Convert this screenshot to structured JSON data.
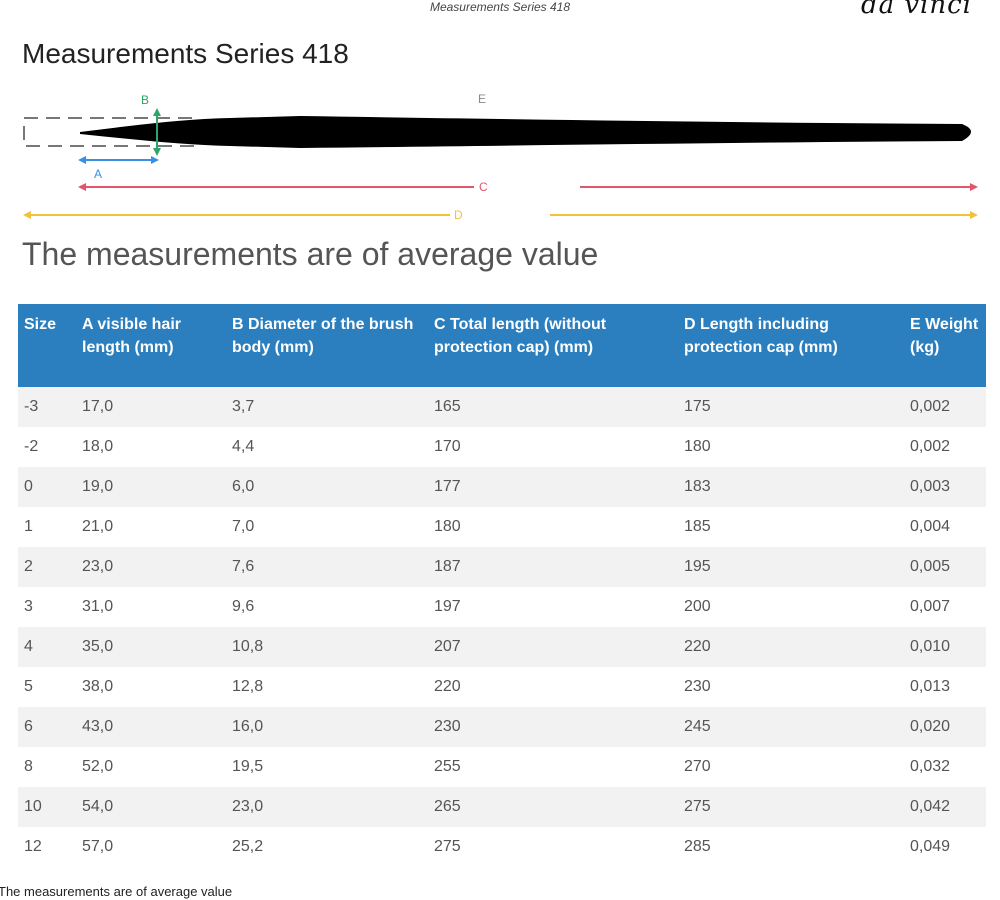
{
  "header": {
    "doc_title": "Measurements Series 418",
    "brand": "da vinci"
  },
  "page_title": "Measurements Series 418",
  "diagram": {
    "labels": {
      "a": "A",
      "b": "B",
      "c": "C",
      "d": "D",
      "e": "E"
    },
    "colors": {
      "a": "#3a8ee6",
      "b": "#2ea46b",
      "c": "#e0566b",
      "d": "#f2c23a",
      "brush": "#000000",
      "cap": "#777777"
    }
  },
  "subtitle": "The measurements are of average value",
  "table": {
    "header_color": "#2c7fbf",
    "columns": [
      "Size",
      "A visible hair length (mm)",
      "B Diameter of the brush body (mm)",
      "C Total length (without protection cap) (mm)",
      "D Length including protection cap (mm)",
      "E Weight (kg)"
    ],
    "rows": [
      [
        "-3",
        "17,0",
        "3,7",
        "165",
        "175",
        "0,002"
      ],
      [
        "-2",
        "18,0",
        "4,4",
        "170",
        "180",
        "0,002"
      ],
      [
        "0",
        "19,0",
        "6,0",
        "177",
        "183",
        "0,003"
      ],
      [
        "1",
        "21,0",
        "7,0",
        "180",
        "185",
        "0,004"
      ],
      [
        "2",
        "23,0",
        "7,6",
        "187",
        "195",
        "0,005"
      ],
      [
        "3",
        "31,0",
        "9,6",
        "197",
        "200",
        "0,007"
      ],
      [
        "4",
        "35,0",
        "10,8",
        "207",
        "220",
        "0,010"
      ],
      [
        "5",
        "38,0",
        "12,8",
        "220",
        "230",
        "0,013"
      ],
      [
        "6",
        "43,0",
        "16,0",
        "230",
        "245",
        "0,020"
      ],
      [
        "8",
        "52,0",
        "19,5",
        "255",
        "270",
        "0,032"
      ],
      [
        "10",
        "54,0",
        "23,0",
        "265",
        "275",
        "0,042"
      ],
      [
        "12",
        "57,0",
        "25,2",
        "275",
        "285",
        "0,049"
      ]
    ]
  },
  "footnote": "The measurements are of average value"
}
